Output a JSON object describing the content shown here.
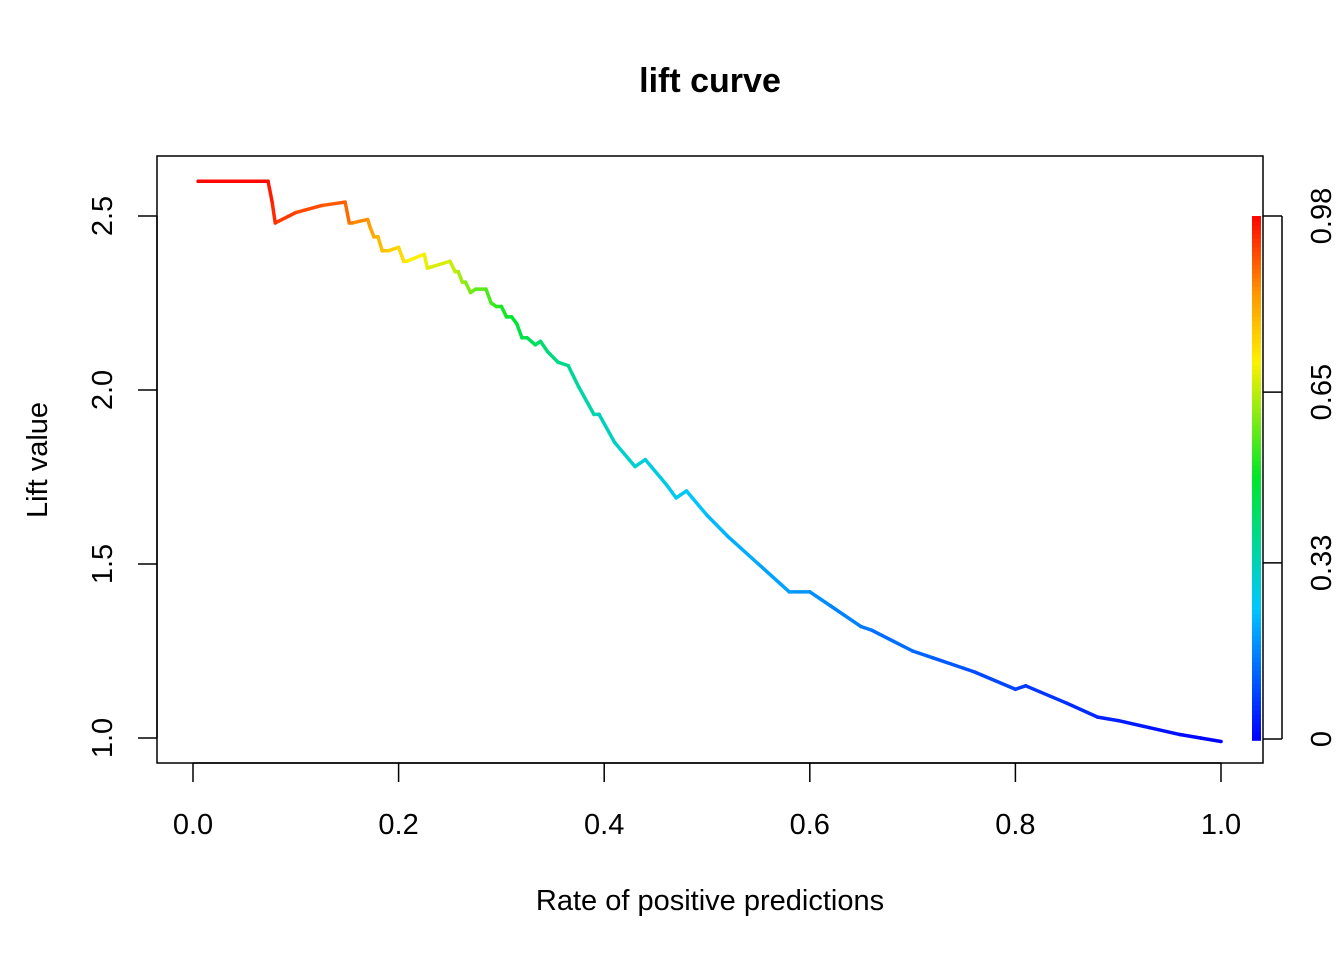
{
  "chart_data": {
    "type": "line",
    "title": "lift curve",
    "xlabel": "Rate of positive predictions",
    "ylabel": "Lift value",
    "xlim": [
      0.0,
      1.0
    ],
    "ylim": [
      1.0,
      2.6
    ],
    "x_ticks": [
      "0.0",
      "0.2",
      "0.4",
      "0.6",
      "0.8",
      "1.0"
    ],
    "y_ticks": [
      "1.0",
      "1.5",
      "2.0",
      "2.5"
    ],
    "colorbar": {
      "ticks": [
        "0",
        "0.33",
        "0.65",
        "0.98"
      ],
      "tick_values": [
        0.0,
        0.33,
        0.65,
        0.98
      ],
      "range": [
        0.0,
        0.98
      ]
    },
    "series": [
      {
        "x": [
          0.005,
          0.073,
          0.077,
          0.08,
          0.1,
          0.125,
          0.148,
          0.152,
          0.155,
          0.17,
          0.172,
          0.176,
          0.18,
          0.184,
          0.19,
          0.2,
          0.205,
          0.208,
          0.225,
          0.228,
          0.25,
          0.255,
          0.258,
          0.262,
          0.265,
          0.27,
          0.275,
          0.285,
          0.29,
          0.295,
          0.3,
          0.305,
          0.31,
          0.315,
          0.32,
          0.325,
          0.333,
          0.338,
          0.345,
          0.355,
          0.365,
          0.375,
          0.39,
          0.395,
          0.41,
          0.43,
          0.44,
          0.46,
          0.47,
          0.48,
          0.5,
          0.52,
          0.55,
          0.58,
          0.6,
          0.62,
          0.65,
          0.66,
          0.7,
          0.72,
          0.75,
          0.76,
          0.8,
          0.81,
          0.85,
          0.88,
          0.9,
          0.93,
          0.96,
          0.98,
          1.0
        ],
        "y": [
          2.6,
          2.6,
          2.54,
          2.48,
          2.51,
          2.53,
          2.54,
          2.48,
          2.48,
          2.49,
          2.47,
          2.44,
          2.44,
          2.4,
          2.4,
          2.41,
          2.37,
          2.37,
          2.39,
          2.35,
          2.37,
          2.34,
          2.34,
          2.31,
          2.31,
          2.28,
          2.29,
          2.29,
          2.25,
          2.24,
          2.24,
          2.21,
          2.21,
          2.19,
          2.15,
          2.15,
          2.13,
          2.14,
          2.11,
          2.08,
          2.07,
          2.01,
          1.93,
          1.93,
          1.85,
          1.78,
          1.8,
          1.73,
          1.69,
          1.71,
          1.64,
          1.58,
          1.5,
          1.42,
          1.42,
          1.38,
          1.32,
          1.31,
          1.25,
          1.23,
          1.2,
          1.19,
          1.14,
          1.15,
          1.1,
          1.06,
          1.05,
          1.03,
          1.01,
          1.0,
          0.99
        ]
      }
    ]
  }
}
